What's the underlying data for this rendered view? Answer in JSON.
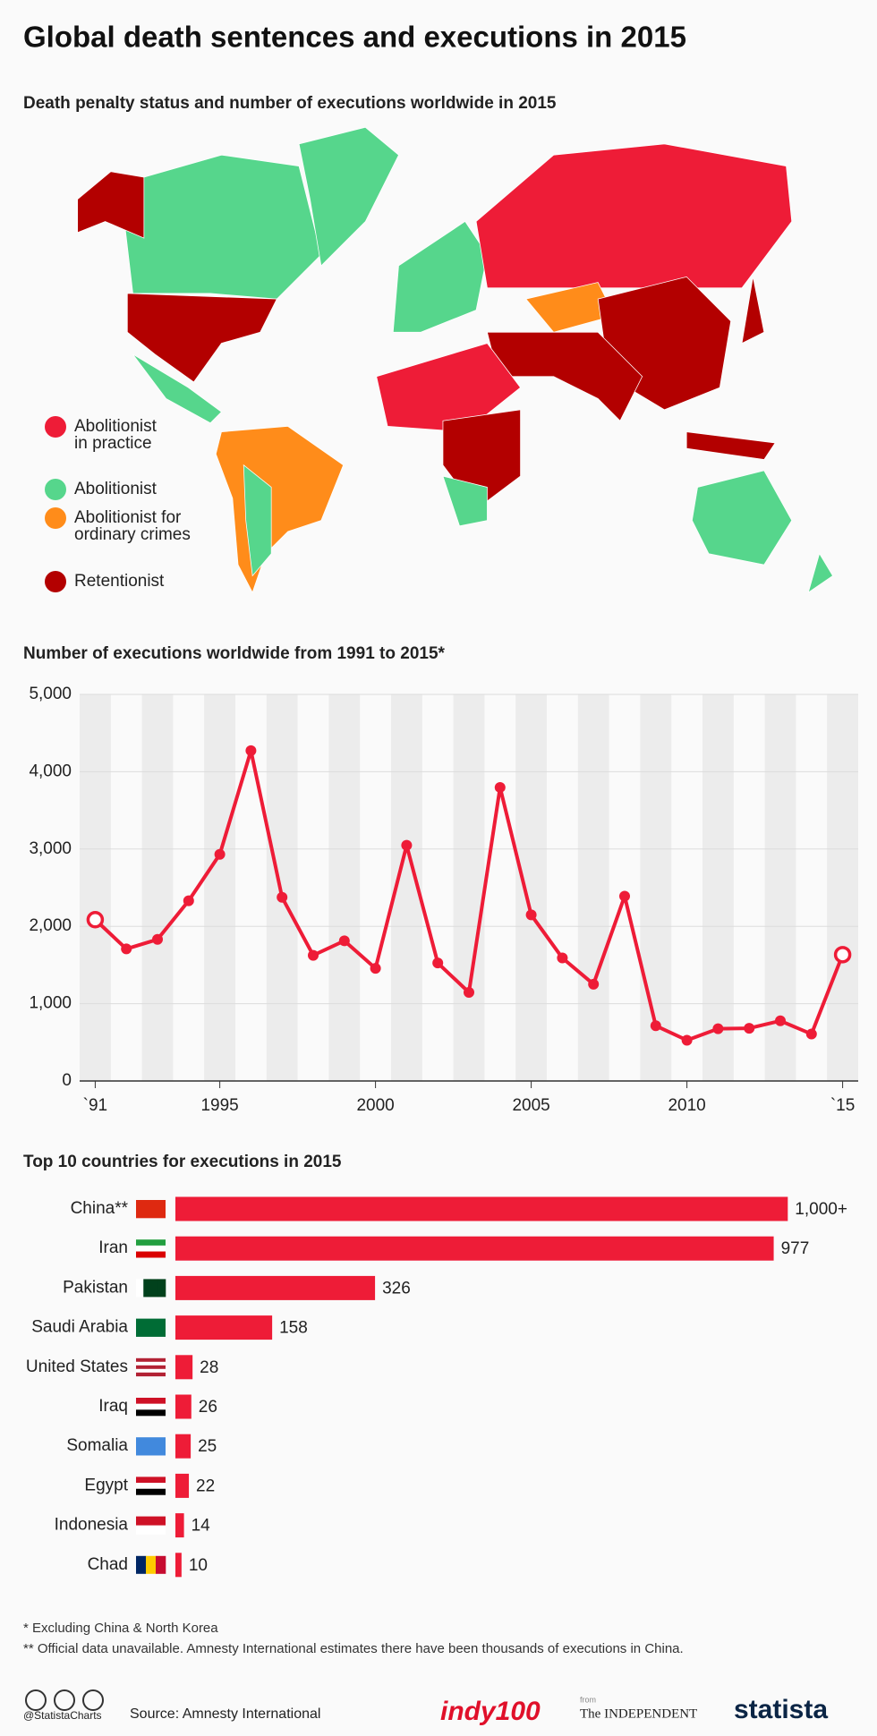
{
  "title": "Global death sentences and executions in 2015",
  "map": {
    "subtitle": "Death penalty status and number of executions worldwide in 2015",
    "legend": [
      {
        "label": [
          "Abolitionist",
          "in practice"
        ],
        "color": "#ee1c37"
      },
      {
        "label": [
          "Abolitionist"
        ],
        "color": "#56d68c"
      },
      {
        "label": [
          "Abolitionist for",
          "ordinary crimes"
        ],
        "color": "#ff8c1a"
      },
      {
        "label": [
          "Retentionist"
        ],
        "color": "#b30000"
      }
    ]
  },
  "chart_data": [
    {
      "type": "line",
      "title": "Number of executions worldwide from 1991 to 2015*",
      "color": "#ee1c37",
      "x": [
        1991,
        1992,
        1993,
        1994,
        1995,
        1996,
        1997,
        1998,
        1999,
        2000,
        2001,
        2002,
        2003,
        2004,
        2005,
        2006,
        2007,
        2008,
        2009,
        2010,
        2011,
        2012,
        2013,
        2014,
        2015
      ],
      "values": [
        2086,
        1708,
        1831,
        2331,
        2931,
        4272,
        2375,
        1625,
        1813,
        1457,
        3048,
        1526,
        1146,
        3797,
        2148,
        1591,
        1252,
        2390,
        714,
        527,
        676,
        682,
        778,
        607,
        1634
      ],
      "xlim": [
        1990.5,
        2015.5
      ],
      "xticks": [
        {
          "value": 1991,
          "label": "`91"
        },
        1995,
        2000,
        2005,
        2010,
        {
          "value": 2015,
          "label": "`15"
        }
      ],
      "ylim": [
        0,
        5000
      ],
      "yticks": [
        0,
        {
          "value": 1000,
          "label": "1,000"
        },
        {
          "value": 2000,
          "label": "2,000"
        },
        {
          "value": 3000,
          "label": "3,000"
        },
        {
          "value": 4000,
          "label": "4,000"
        },
        {
          "value": 5000,
          "label": "5,000"
        }
      ],
      "grid": true
    },
    {
      "type": "bar",
      "horizontal": true,
      "title": "Top 10 countries for executions in 2015",
      "color": "#ee1c37",
      "categories": [
        "China**",
        "Iran",
        "Pakistan",
        "Saudi Arabia",
        "United States",
        "Iraq",
        "Somalia",
        "Egypt",
        "Indonesia",
        "Chad"
      ],
      "values": [
        1000,
        977,
        326,
        158,
        28,
        26,
        25,
        22,
        14,
        10
      ],
      "value_labels": [
        "1,000+",
        "977",
        "326",
        "158",
        "28",
        "26",
        "25",
        "22",
        "14",
        "10"
      ],
      "xlim": [
        0,
        1115
      ]
    }
  ],
  "footnotes": [
    "*   Excluding China & North Korea",
    "** Official data unavailable. Amnesty International estimates there have been thousands of executions in China."
  ],
  "footer": {
    "handle": "@StatistaCharts",
    "source": "Source: Amnesty International",
    "brand1": "indy100",
    "from": "from",
    "brand2": "The INDEPENDENT",
    "brand3": "statista"
  }
}
